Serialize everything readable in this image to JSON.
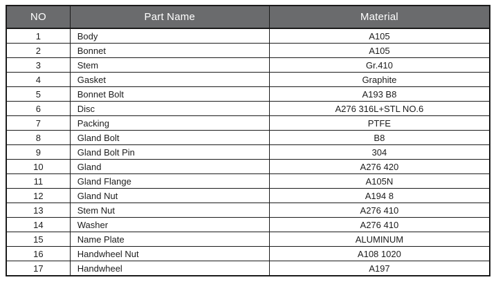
{
  "table": {
    "headers": [
      {
        "key": "no",
        "label": "NO"
      },
      {
        "key": "partname",
        "label": "Part Name"
      },
      {
        "key": "material",
        "label": "Material"
      }
    ],
    "rows": [
      {
        "no": "1",
        "partname": "Body",
        "material": "A105"
      },
      {
        "no": "2",
        "partname": "Bonnet",
        "material": "A105"
      },
      {
        "no": "3",
        "partname": "Stem",
        "material": "Gr.410"
      },
      {
        "no": "4",
        "partname": "Gasket",
        "material": "Graphite"
      },
      {
        "no": "5",
        "partname": "Bonnet Bolt",
        "material": "A193 B8"
      },
      {
        "no": "6",
        "partname": "Disc",
        "material": "A276 316L+STL NO.6"
      },
      {
        "no": "7",
        "partname": "Packing",
        "material": "PTFE"
      },
      {
        "no": "8",
        "partname": "Gland Bolt",
        "material": "B8"
      },
      {
        "no": "9",
        "partname": "Gland Bolt Pin",
        "material": "304"
      },
      {
        "no": "10",
        "partname": "Gland",
        "material": "A276 420"
      },
      {
        "no": "11",
        "partname": "Gland Flange",
        "material": "A105N"
      },
      {
        "no": "12",
        "partname": "Gland Nut",
        "material": "A194 8"
      },
      {
        "no": "13",
        "partname": "Stem Nut",
        "material": "A276 410"
      },
      {
        "no": "14",
        "partname": "Washer",
        "material": "A276 410"
      },
      {
        "no": "15",
        "partname": "Name Plate",
        "material": "ALUMINUM"
      },
      {
        "no": "16",
        "partname": "Handwheel Nut",
        "material": "A108 1020"
      },
      {
        "no": "17",
        "partname": "Handwheel",
        "material": "A197"
      }
    ],
    "colors": {
      "header_bg": "#6a6b6d",
      "header_text": "#ffffff",
      "border": "#1a1a1a",
      "cell_text": "#1c1c1c"
    }
  }
}
